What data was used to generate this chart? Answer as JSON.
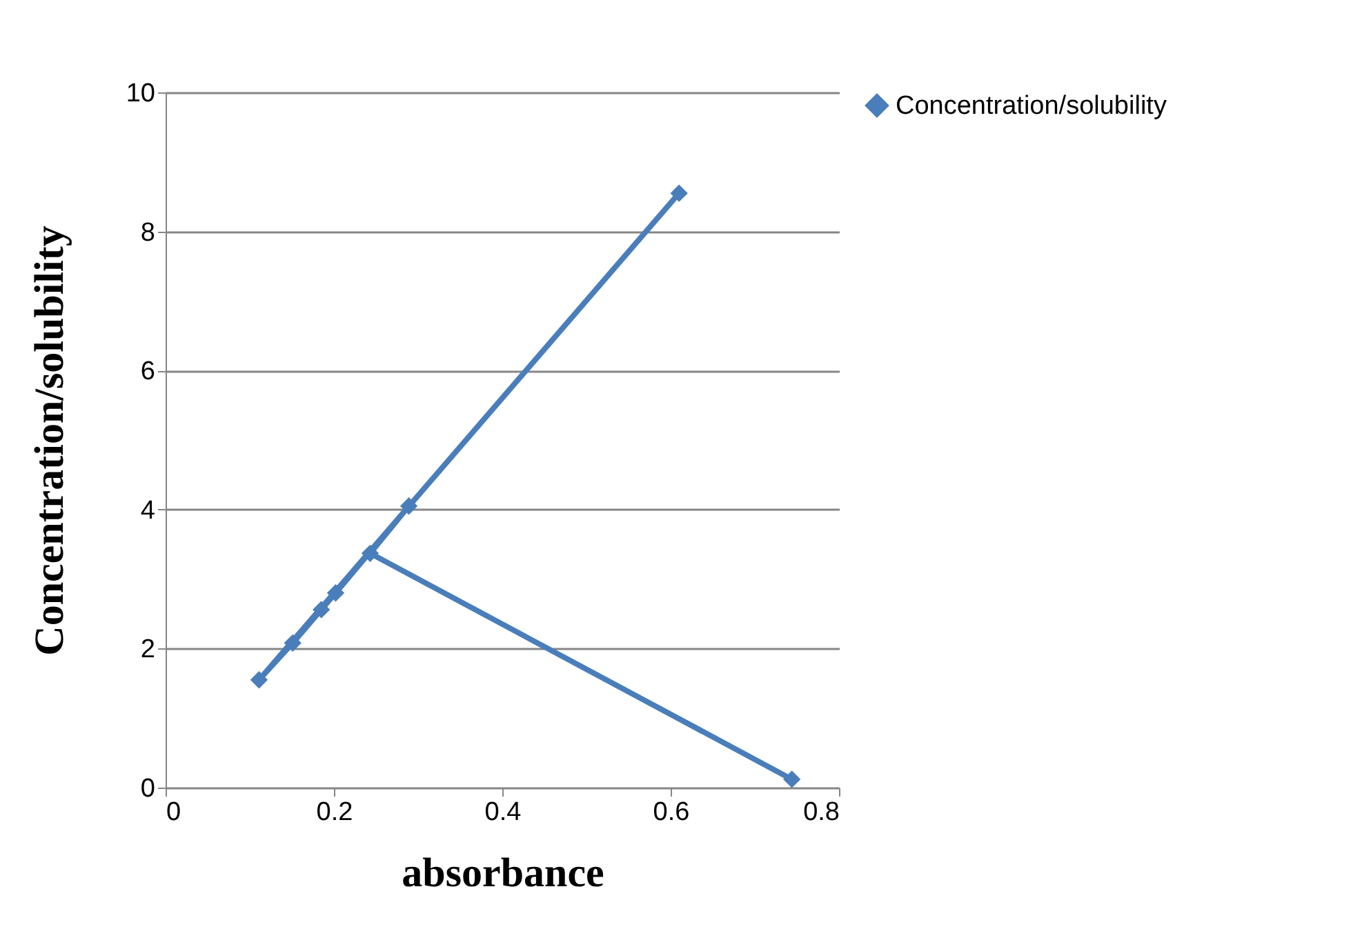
{
  "chart_data": {
    "type": "line",
    "xlabel": "absorbance",
    "ylabel": "Concentration/solubility",
    "x": [
      0.61,
      0.111,
      0.151,
      0.185,
      0.202,
      0.289,
      0.243,
      0.744
    ],
    "series": [
      {
        "name": "Concentration/solubility",
        "color": "#4a7ebb",
        "values": [
          8.55,
          1.55,
          2.08,
          2.56,
          2.8,
          4.05,
          3.37,
          0.12
        ]
      }
    ],
    "xlim": [
      0,
      0.8
    ],
    "xticks": [
      0,
      0.2,
      0.4,
      0.6,
      0.8
    ],
    "ylim": [
      0,
      10
    ],
    "yticks": [
      0,
      2,
      4,
      6,
      8,
      10
    ],
    "grid": "y",
    "legend": "right",
    "marker": "diamond",
    "line_style": "solid"
  }
}
